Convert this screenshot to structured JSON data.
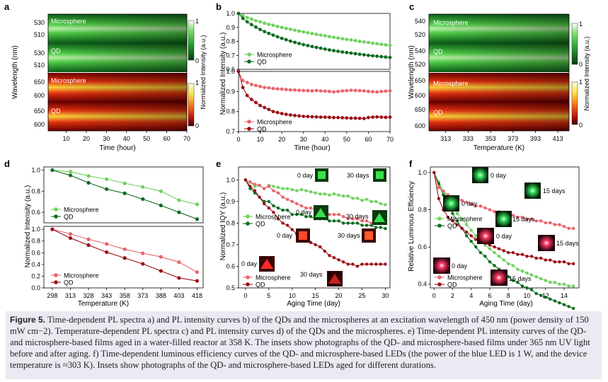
{
  "colors": {
    "green_light": "#6fd15e",
    "green_dark": "#0d6b1f",
    "red_light": "#e8646e",
    "red_dark": "#9a1116"
  },
  "chart_data": [
    {
      "panel": "a",
      "type": "heatmap",
      "xlabel": "Time (hour)",
      "ylabel": "Wavelength (nm)",
      "xticks": [
        "10",
        "20",
        "30",
        "40",
        "50",
        "60",
        "70"
      ],
      "colorbar": {
        "label": "Normalized Intensity (a.u.)",
        "top": "1",
        "bottom": "0"
      },
      "strips": [
        {
          "label": "Microsphere",
          "yticks": [
            "530",
            "510"
          ],
          "cmap": "green"
        },
        {
          "label": "QD",
          "yticks": [
            "530",
            "510"
          ],
          "cmap": "green"
        },
        {
          "label": "Microsphere",
          "yticks": [
            "650",
            "600"
          ],
          "cmap": "red"
        },
        {
          "label": "QD",
          "yticks": [
            "650",
            "600"
          ],
          "cmap": "red"
        }
      ]
    },
    {
      "panel": "b",
      "type": "line",
      "xlabel": "Time (hour)",
      "ylabel": "Normalized Intensity (a.u.)",
      "xticks": [
        "0",
        "10",
        "20",
        "30",
        "40",
        "50",
        "60",
        "70"
      ],
      "x": [
        0,
        2,
        4,
        6,
        8,
        10,
        12,
        14,
        16,
        18,
        20,
        22,
        24,
        26,
        28,
        30,
        32,
        34,
        36,
        38,
        40,
        42,
        44,
        46,
        48,
        50,
        52,
        54,
        56,
        58,
        60,
        62,
        64,
        66,
        68,
        70
      ],
      "top": {
        "ylim": [
          0.6,
          1.0
        ],
        "yticks": [
          "0.6",
          "0.7",
          "0.8",
          "0.9",
          "1.0"
        ],
        "series": [
          {
            "name": "Microsphere",
            "color": "green_light",
            "values": [
              1.0,
              0.985,
              0.97,
              0.96,
              0.948,
              0.94,
              0.93,
              0.922,
              0.915,
              0.907,
              0.9,
              0.893,
              0.887,
              0.88,
              0.874,
              0.868,
              0.862,
              0.856,
              0.85,
              0.845,
              0.84,
              0.834,
              0.829,
              0.824,
              0.819,
              0.814,
              0.81,
              0.805,
              0.8,
              0.796,
              0.792,
              0.787,
              0.783,
              0.779,
              0.775,
              0.771
            ]
          },
          {
            "name": "QD",
            "color": "green_dark",
            "values": [
              1.0,
              0.965,
              0.94,
              0.92,
              0.902,
              0.885,
              0.87,
              0.857,
              0.845,
              0.833,
              0.822,
              0.812,
              0.802,
              0.793,
              0.785,
              0.777,
              0.77,
              0.763,
              0.757,
              0.751,
              0.745,
              0.739,
              0.734,
              0.729,
              0.724,
              0.72,
              0.716,
              0.712,
              0.708,
              0.704,
              0.7,
              0.697,
              0.694,
              0.691,
              0.688,
              0.685
            ]
          }
        ]
      },
      "bottom": {
        "ylim": [
          0.7,
          1.0
        ],
        "yticks": [
          "0.7",
          "0.8",
          "0.9",
          "1.0"
        ],
        "series": [
          {
            "name": "Microsphere",
            "color": "red_light",
            "values": [
              1.0,
              0.955,
              0.945,
              0.935,
              0.93,
              0.925,
              0.92,
              0.918,
              0.915,
              0.913,
              0.912,
              0.91,
              0.908,
              0.907,
              0.906,
              0.905,
              0.904,
              0.903,
              0.905,
              0.903,
              0.902,
              0.9,
              0.898,
              0.9,
              0.903,
              0.904,
              0.906,
              0.905,
              0.904,
              0.903,
              0.9,
              0.899,
              0.898,
              0.9,
              0.902,
              0.903
            ]
          },
          {
            "name": "QD",
            "color": "red_dark",
            "values": [
              1.0,
              0.92,
              0.88,
              0.86,
              0.845,
              0.83,
              0.82,
              0.81,
              0.8,
              0.795,
              0.79,
              0.786,
              0.783,
              0.78,
              0.778,
              0.776,
              0.775,
              0.774,
              0.773,
              0.772,
              0.772,
              0.771,
              0.77,
              0.77,
              0.769,
              0.768,
              0.767,
              0.767,
              0.766,
              0.765,
              0.77,
              0.772,
              0.773,
              0.772,
              0.771,
              0.772
            ]
          }
        ]
      }
    },
    {
      "panel": "c",
      "type": "heatmap",
      "xlabel": "Temperature (K)",
      "ylabel": "Wavelength (nm)",
      "xticks": [
        "313",
        "333",
        "353",
        "373",
        "393",
        "413"
      ],
      "colorbar": {
        "label": "Normalized Intensity (a.u.)",
        "top": "1",
        "bottom": "0"
      },
      "strips": [
        {
          "label": "Microsphere",
          "yticks": [
            "540",
            "520"
          ],
          "cmap": "green"
        },
        {
          "label": "QD",
          "yticks": [
            "540",
            "520"
          ],
          "cmap": "green"
        },
        {
          "label": "Microsphere",
          "yticks": [
            "650",
            "600"
          ],
          "cmap": "red"
        },
        {
          "label": "QD",
          "yticks": [
            "650",
            "600"
          ],
          "cmap": "red"
        }
      ]
    },
    {
      "panel": "d",
      "type": "line",
      "xlabel": "Temperature (K)",
      "ylabel": "Normalized Intensity (a.u.)",
      "xticks": [
        "298",
        "313",
        "328",
        "343",
        "358",
        "373",
        "388",
        "403",
        "418"
      ],
      "x": [
        298,
        313,
        328,
        343,
        358,
        373,
        388,
        403,
        418
      ],
      "top": {
        "ylim": [
          0.5,
          1.0
        ],
        "yticks": [
          "0.6",
          "0.8",
          "1.0"
        ],
        "series": [
          {
            "name": "Microsphere",
            "color": "green_light",
            "values": [
              1.0,
              0.985,
              0.945,
              0.915,
              0.875,
              0.84,
              0.8,
              0.715,
              0.675
            ]
          },
          {
            "name": "QD",
            "color": "green_dark",
            "values": [
              1.0,
              0.95,
              0.88,
              0.82,
              0.78,
              0.725,
              0.665,
              0.6,
              0.535
            ]
          }
        ]
      },
      "bottom": {
        "ylim": [
          0.0,
          1.0
        ],
        "yticks": [
          "0.0",
          "0.2",
          "0.4",
          "0.6",
          "0.8",
          "1.0"
        ],
        "series": [
          {
            "name": "Microsphere",
            "color": "red_light",
            "values": [
              1.0,
              0.92,
              0.83,
              0.75,
              0.66,
              0.59,
              0.53,
              0.44,
              0.27
            ]
          },
          {
            "name": "QD",
            "color": "red_dark",
            "values": [
              1.0,
              0.85,
              0.73,
              0.61,
              0.51,
              0.41,
              0.29,
              0.17,
              0.12
            ]
          }
        ]
      }
    },
    {
      "panel": "e",
      "type": "line",
      "xlabel": "Aging Time (day)",
      "ylabel": "Normalized IQY (a.u.)",
      "xticks": [
        "0",
        "5",
        "10",
        "15",
        "20",
        "25",
        "30"
      ],
      "yticks": [
        "0.5",
        "0.6",
        "0.7",
        "0.8",
        "0.9",
        "1.0"
      ],
      "ylim": [
        0.5,
        1.05
      ],
      "x": [
        0,
        1,
        2,
        3,
        4,
        5,
        6,
        7,
        8,
        9,
        10,
        11,
        12,
        13,
        14,
        15,
        16,
        17,
        18,
        19,
        20,
        21,
        22,
        23,
        24,
        25,
        26,
        27,
        28,
        29,
        30
      ],
      "series": [
        {
          "name": "Microsphere",
          "color": "green_light",
          "values": [
            1.0,
            0.99,
            0.97,
            0.975,
            0.96,
            0.975,
            0.97,
            0.965,
            0.96,
            0.96,
            0.955,
            0.95,
            0.955,
            0.95,
            0.945,
            0.94,
            0.935,
            0.935,
            0.93,
            0.935,
            0.93,
            0.925,
            0.925,
            0.915,
            0.915,
            0.905,
            0.91,
            0.9,
            0.9,
            0.89,
            0.885
          ]
        },
        {
          "name": "QD",
          "color": "green_dark",
          "values": [
            1.0,
            0.96,
            0.94,
            0.92,
            0.9,
            0.9,
            0.88,
            0.87,
            0.86,
            0.86,
            0.84,
            0.84,
            0.84,
            0.83,
            0.83,
            0.82,
            0.82,
            0.82,
            0.81,
            0.81,
            0.81,
            0.8,
            0.8,
            0.8,
            0.8,
            0.79,
            0.79,
            0.79,
            0.78,
            0.78,
            0.775
          ]
        },
        {
          "name": "Microsphere",
          "color": "red_light",
          "values": [
            1.0,
            0.99,
            0.98,
            0.975,
            0.96,
            0.97,
            0.95,
            0.94,
            0.92,
            0.91,
            0.9,
            0.89,
            0.88,
            0.87,
            0.87,
            0.86,
            0.85,
            0.85,
            0.84,
            0.84,
            0.84,
            0.83,
            0.82,
            0.82,
            0.82,
            0.81,
            0.81,
            0.8,
            0.8,
            0.8,
            0.8
          ]
        },
        {
          "name": "QD",
          "color": "red_dark",
          "values": [
            1.0,
            0.97,
            0.95,
            0.92,
            0.89,
            0.87,
            0.85,
            0.82,
            0.8,
            0.79,
            0.77,
            0.75,
            0.73,
            0.72,
            0.71,
            0.7,
            0.69,
            0.67,
            0.65,
            0.64,
            0.63,
            0.62,
            0.61,
            0.61,
            0.6,
            0.61,
            0.61,
            0.61,
            0.61,
            0.61,
            0.61
          ]
        }
      ],
      "insets": [
        "0 day",
        "30 days",
        "0 day",
        "30 days",
        "0 day",
        "30 days",
        "0 day",
        "30 days"
      ]
    },
    {
      "panel": "f",
      "type": "line",
      "xlabel": "Aging Time (day)",
      "ylabel": "Relative Luminous Efficiency",
      "xticks": [
        "0",
        "2",
        "4",
        "6",
        "8",
        "10",
        "12",
        "14"
      ],
      "yticks": [
        "0.4",
        "0.6",
        "0.8",
        "1.0"
      ],
      "ylim": [
        0.38,
        1.02
      ],
      "x": [
        0,
        0.5,
        1,
        1.5,
        2,
        2.5,
        3,
        3.5,
        4,
        4.5,
        5,
        5.5,
        6,
        6.5,
        7,
        7.5,
        8,
        8.5,
        9,
        9.5,
        10,
        10.5,
        11,
        11.5,
        12,
        12.5,
        13,
        13.5,
        14,
        14.5,
        15
      ],
      "series": [
        {
          "name": "Microsphere",
          "color": "green_light",
          "values": [
            1.0,
            0.95,
            0.9,
            0.86,
            0.82,
            0.78,
            0.75,
            0.72,
            0.69,
            0.66,
            0.63,
            0.61,
            0.59,
            0.57,
            0.55,
            0.53,
            0.51,
            0.5,
            0.48,
            0.47,
            0.46,
            0.45,
            0.44,
            0.43,
            0.42,
            0.41,
            0.41,
            0.4,
            0.4,
            0.39,
            0.39
          ]
        },
        {
          "name": "QD",
          "color": "green_dark",
          "values": [
            1.0,
            0.94,
            0.88,
            0.83,
            0.78,
            0.74,
            0.7,
            0.66,
            0.63,
            0.6,
            0.57,
            0.55,
            0.52,
            0.5,
            0.48,
            0.46,
            0.44,
            0.42,
            0.41,
            0.39,
            0.38,
            0.37,
            0.35,
            0.34,
            0.33,
            0.32,
            0.31,
            0.3,
            0.29,
            0.28,
            0.27
          ]
        },
        {
          "name": "Microsphere",
          "color": "red_light",
          "values": [
            1.0,
            0.92,
            0.9,
            0.88,
            0.87,
            0.86,
            0.85,
            0.84,
            0.83,
            0.82,
            0.82,
            0.81,
            0.8,
            0.79,
            0.79,
            0.78,
            0.78,
            0.77,
            0.76,
            0.76,
            0.75,
            0.75,
            0.74,
            0.74,
            0.73,
            0.73,
            0.72,
            0.72,
            0.71,
            0.7,
            0.7
          ]
        },
        {
          "name": "QD",
          "color": "red_dark",
          "values": [
            1.0,
            0.86,
            0.8,
            0.76,
            0.74,
            0.72,
            0.7,
            0.68,
            0.66,
            0.64,
            0.63,
            0.62,
            0.61,
            0.6,
            0.59,
            0.58,
            0.57,
            0.57,
            0.56,
            0.56,
            0.55,
            0.55,
            0.54,
            0.54,
            0.53,
            0.53,
            0.52,
            0.52,
            0.52,
            0.51,
            0.51
          ]
        }
      ],
      "insets": [
        "0 day",
        "15 days",
        "0 day",
        "15 days",
        "0 day",
        "15 days",
        "0 day",
        "15 days"
      ]
    }
  ],
  "caption": {
    "figure_label": "Figure 5.",
    "text": "Time-dependent PL spectra a) and PL intensity curves b) of the QDs and the microspheres at an excitation wavelength of 450 nm (power density of 150 mW cm−2). Temperature-dependent PL spectra c) and PL intensity curves d) of the QDs and the microspheres. e) Time-dependent PL intensity curves of the QD- and microsphere-based films aged in a water-filled reactor at 358 K. The insets show photographs of the QD- and microsphere-based films under 365 nm UV light before and after aging. f) Time-dependent luminous efficiency curves of the QD- and microsphere-based LEDs (the power of the blue LED is 1 W, and the device temperature is ≈303 K). Insets show photographs of the QD- and microsphere-based LEDs aged for different durations."
  }
}
